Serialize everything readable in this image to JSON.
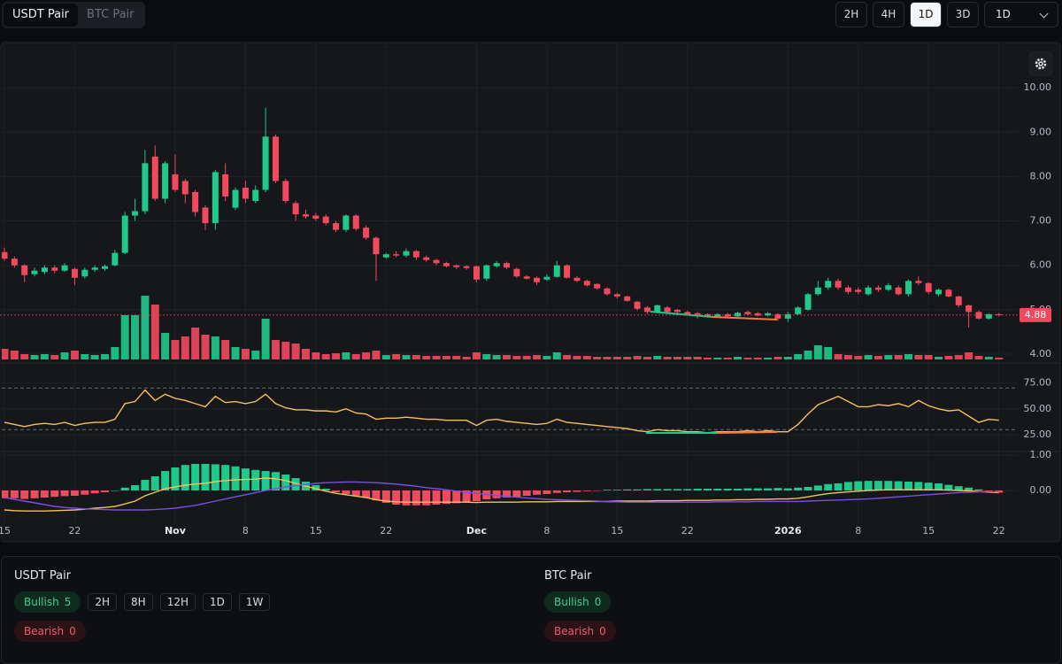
{
  "pair_tabs": [
    {
      "label": "USDT Pair",
      "active": true
    },
    {
      "label": "BTC Pair",
      "active": false
    }
  ],
  "timeframes": [
    {
      "label": "2H",
      "active": false
    },
    {
      "label": "4H",
      "active": false
    },
    {
      "label": "1D",
      "active": true
    },
    {
      "label": "3D",
      "active": false
    }
  ],
  "interval_select": "1D",
  "chart_data": {
    "type": "candlestick",
    "categories": [
      "15",
      null,
      null,
      null,
      null,
      null,
      null,
      "22",
      null,
      null,
      null,
      null,
      null,
      null,
      null,
      null,
      null,
      "Nov",
      null,
      null,
      null,
      null,
      null,
      null,
      "8",
      null,
      null,
      null,
      null,
      null,
      null,
      "15",
      null,
      null,
      null,
      null,
      null,
      null,
      "22",
      null,
      null,
      null,
      null,
      null,
      null,
      null,
      null,
      "Dec",
      null,
      null,
      null,
      null,
      null,
      null,
      "8",
      null,
      null,
      null,
      null,
      null,
      null,
      "15",
      null,
      null,
      null,
      null,
      null,
      null,
      "22",
      null,
      null,
      null,
      null,
      null,
      null,
      null,
      null,
      null,
      "2026",
      null,
      null,
      null,
      null,
      null,
      null,
      "8",
      null,
      null,
      null,
      null,
      null,
      null,
      "15",
      null,
      null,
      null,
      null,
      null,
      null,
      "22"
    ],
    "open": [
      6.3,
      6.15,
      6.0,
      5.8,
      5.85,
      5.95,
      5.88,
      5.92,
      5.75,
      5.9,
      5.92,
      6.0,
      6.28,
      7.12,
      7.22,
      8.45,
      7.5,
      8.05,
      7.9,
      7.65,
      7.3,
      6.95,
      8.05,
      7.3,
      7.75,
      7.45,
      7.7,
      8.9,
      7.9,
      7.4,
      7.15,
      7.12,
      7.1,
      6.95,
      6.8,
      7.12,
      6.85,
      6.62,
      6.18,
      6.25,
      6.22,
      6.32,
      6.18,
      6.12,
      6.05,
      6.0,
      5.98,
      5.98,
      5.7,
      5.98,
      6.05,
      5.92,
      5.75,
      5.72,
      5.68,
      5.74,
      6.0,
      5.72,
      5.65,
      5.58,
      5.48,
      5.35,
      5.3,
      5.18,
      5.05,
      4.95,
      5.05,
      5.0,
      4.95,
      4.92,
      4.9,
      4.85,
      4.9,
      4.85,
      4.95,
      4.92,
      4.87,
      4.9,
      4.8,
      4.9,
      5.0,
      5.35,
      5.5,
      5.65,
      5.5,
      5.45,
      5.35,
      5.5,
      5.45,
      5.5,
      5.35,
      5.65,
      5.6,
      5.35,
      5.45,
      5.3,
      5.1,
      4.95,
      4.8,
      4.9
    ],
    "high": [
      6.4,
      6.2,
      6.02,
      5.95,
      6.0,
      6.0,
      6.05,
      5.95,
      5.95,
      6.0,
      6.02,
      6.35,
      7.2,
      7.5,
      8.6,
      8.7,
      8.35,
      8.5,
      7.95,
      7.7,
      7.35,
      8.15,
      8.3,
      7.75,
      7.9,
      7.8,
      9.55,
      8.95,
      7.95,
      7.45,
      7.25,
      7.18,
      7.15,
      7.0,
      7.15,
      7.15,
      6.9,
      6.65,
      6.28,
      6.32,
      6.38,
      6.35,
      6.22,
      6.15,
      6.08,
      6.02,
      6.0,
      6.0,
      6.02,
      6.1,
      6.08,
      5.95,
      5.78,
      5.75,
      5.8,
      6.1,
      6.02,
      5.75,
      5.68,
      5.6,
      5.5,
      5.38,
      5.32,
      5.2,
      5.08,
      5.12,
      5.08,
      5.02,
      4.98,
      4.95,
      4.92,
      4.92,
      4.93,
      4.96,
      4.98,
      4.95,
      4.95,
      4.92,
      4.95,
      5.08,
      5.38,
      5.65,
      5.72,
      5.7,
      5.55,
      5.5,
      5.55,
      5.55,
      5.6,
      5.55,
      5.68,
      5.75,
      5.62,
      5.48,
      5.48,
      5.32,
      5.12,
      4.98,
      4.92,
      4.92
    ],
    "low": [
      6.1,
      5.95,
      5.62,
      5.75,
      5.8,
      5.82,
      5.85,
      5.55,
      5.7,
      5.85,
      5.88,
      5.98,
      6.25,
      7.0,
      7.15,
      7.45,
      7.4,
      7.65,
      7.4,
      7.1,
      6.8,
      6.8,
      7.45,
      7.25,
      7.4,
      7.4,
      7.65,
      7.85,
      7.4,
      7.0,
      7.05,
      7.0,
      6.9,
      6.75,
      6.75,
      6.78,
      6.58,
      5.65,
      6.15,
      6.18,
      6.18,
      6.12,
      6.08,
      6.0,
      5.95,
      5.92,
      5.9,
      5.62,
      5.65,
      5.95,
      5.92,
      5.72,
      5.68,
      5.55,
      5.65,
      5.72,
      5.7,
      5.62,
      5.52,
      5.45,
      5.32,
      5.25,
      5.18,
      4.98,
      4.9,
      4.92,
      4.9,
      4.9,
      4.88,
      4.8,
      4.82,
      4.82,
      4.82,
      4.83,
      4.88,
      4.85,
      4.85,
      4.75,
      4.72,
      4.88,
      4.98,
      5.32,
      5.45,
      5.45,
      5.35,
      5.35,
      5.32,
      5.4,
      5.42,
      5.32,
      5.3,
      5.55,
      5.35,
      5.3,
      5.28,
      5.05,
      4.6,
      4.78,
      4.78,
      4.85
    ],
    "close": [
      6.15,
      6.0,
      5.78,
      5.88,
      5.95,
      5.88,
      6.0,
      5.72,
      5.9,
      5.95,
      5.98,
      6.28,
      7.12,
      7.22,
      8.3,
      7.5,
      8.3,
      7.7,
      7.6,
      7.2,
      6.95,
      8.1,
      7.55,
      7.7,
      7.5,
      7.7,
      8.9,
      7.9,
      7.45,
      7.15,
      7.1,
      7.05,
      6.95,
      6.8,
      7.12,
      6.82,
      6.62,
      6.25,
      6.25,
      6.22,
      6.32,
      6.18,
      6.12,
      6.05,
      5.98,
      5.96,
      5.94,
      5.68,
      6.0,
      6.05,
      5.95,
      5.75,
      5.7,
      5.62,
      5.74,
      6.0,
      5.72,
      5.65,
      5.55,
      5.48,
      5.35,
      5.3,
      5.2,
      5.02,
      4.95,
      5.1,
      4.95,
      4.95,
      4.9,
      4.88,
      4.85,
      4.9,
      4.85,
      4.93,
      4.9,
      4.87,
      4.92,
      4.8,
      4.9,
      5.05,
      5.35,
      5.5,
      5.65,
      5.5,
      5.4,
      5.4,
      5.5,
      5.45,
      5.55,
      5.35,
      5.65,
      5.6,
      5.4,
      5.45,
      5.3,
      5.1,
      4.95,
      4.8,
      4.9,
      4.88
    ],
    "volume": [
      12,
      10,
      6,
      5,
      6,
      5,
      8,
      10,
      6,
      5,
      6,
      14,
      50,
      50,
      72,
      62,
      30,
      22,
      26,
      36,
      28,
      26,
      22,
      14,
      12,
      10,
      46,
      22,
      20,
      18,
      12,
      8,
      6,
      7,
      8,
      6,
      8,
      10,
      5,
      6,
      5,
      5,
      4,
      4,
      4,
      4,
      3,
      8,
      6,
      5,
      5,
      4,
      4,
      5,
      4,
      8,
      5,
      4,
      4,
      3,
      3,
      3,
      3,
      4,
      3,
      4,
      3,
      3,
      3,
      3,
      2,
      2,
      2,
      3,
      2,
      2,
      2,
      3,
      3,
      6,
      10,
      16,
      14,
      6,
      5,
      4,
      5,
      4,
      5,
      5,
      6,
      5,
      5,
      3,
      4,
      5,
      8,
      4,
      3,
      2
    ],
    "up_color": "#1fc98b",
    "down_color": "#f2495e",
    "ylim": [
      3.84,
      10.98
    ],
    "yticks": [
      {
        "value": 4,
        "label": "4.00"
      },
      {
        "value": 5,
        "label": "5.00"
      },
      {
        "value": 6,
        "label": "6.00"
      },
      {
        "value": 7,
        "label": "7.00"
      },
      {
        "value": 8,
        "label": "8.00"
      },
      {
        "value": 9,
        "label": "9.00"
      },
      {
        "value": 10,
        "label": "10.00"
      }
    ],
    "grid": true,
    "last_price": {
      "value": 4.88,
      "label": "4.88"
    },
    "rsi": {
      "values": [
        37,
        35,
        33,
        35,
        36,
        35,
        37,
        34,
        36,
        37,
        37,
        40,
        55,
        57,
        68,
        58,
        64,
        60,
        58,
        55,
        52,
        62,
        56,
        57,
        55,
        57,
        64,
        55,
        51,
        49,
        49,
        48,
        48,
        47,
        50,
        46,
        45,
        40,
        41,
        41,
        42,
        41,
        40,
        40,
        39,
        39,
        39,
        34,
        39,
        40,
        38,
        37,
        36,
        35,
        36,
        40,
        37,
        36,
        35,
        34,
        33,
        32,
        31,
        29,
        28,
        30,
        29,
        29,
        28,
        28,
        27,
        28,
        28,
        28,
        29,
        28,
        29,
        28,
        28,
        35,
        45,
        54,
        58,
        62,
        57,
        52,
        52,
        54,
        53,
        55,
        52,
        58,
        53,
        50,
        48,
        49,
        43,
        37,
        40,
        39
      ],
      "color": "#f5c15a",
      "ylim": [
        9,
        94
      ],
      "bands": [
        30,
        70
      ],
      "yticks": [
        {
          "value": 25,
          "label": "25.00"
        },
        {
          "value": 50,
          "label": "50.00"
        },
        {
          "value": 75,
          "label": "75.00"
        }
      ]
    },
    "macd": {
      "histogram": [
        -0.22,
        -0.22,
        -0.24,
        -0.22,
        -0.2,
        -0.18,
        -0.16,
        -0.15,
        -0.12,
        -0.08,
        -0.05,
        0.0,
        0.08,
        0.15,
        0.3,
        0.4,
        0.55,
        0.65,
        0.72,
        0.75,
        0.75,
        0.74,
        0.72,
        0.68,
        0.62,
        0.58,
        0.55,
        0.52,
        0.45,
        0.35,
        0.25,
        0.15,
        0.05,
        -0.05,
        -0.1,
        -0.15,
        -0.2,
        -0.28,
        -0.35,
        -0.4,
        -0.42,
        -0.42,
        -0.42,
        -0.4,
        -0.38,
        -0.36,
        -0.34,
        -0.3,
        -0.25,
        -0.22,
        -0.2,
        -0.18,
        -0.15,
        -0.12,
        -0.1,
        -0.07,
        -0.05,
        -0.04,
        -0.02,
        -0.01,
        0.02,
        0.02,
        0.03,
        0.03,
        0.04,
        0.04,
        0.04,
        0.04,
        0.04,
        0.05,
        0.05,
        0.05,
        0.05,
        0.05,
        0.06,
        0.06,
        0.06,
        0.07,
        0.06,
        0.08,
        0.1,
        0.14,
        0.18,
        0.2,
        0.24,
        0.26,
        0.27,
        0.27,
        0.27,
        0.26,
        0.25,
        0.24,
        0.22,
        0.2,
        0.16,
        0.12,
        0.08,
        0.03,
        -0.03,
        -0.06
      ],
      "series": [
        {
          "color": "#f5c15a",
          "values": [
            -0.55,
            -0.57,
            -0.58,
            -0.58,
            -0.58,
            -0.57,
            -0.56,
            -0.55,
            -0.53,
            -0.5,
            -0.48,
            -0.45,
            -0.38,
            -0.3,
            -0.15,
            -0.05,
            0.05,
            0.1,
            0.15,
            0.18,
            0.2,
            0.25,
            0.28,
            0.3,
            0.31,
            0.32,
            0.35,
            0.33,
            0.28,
            0.2,
            0.12,
            0.05,
            -0.02,
            -0.08,
            -0.12,
            -0.16,
            -0.2,
            -0.26,
            -0.3,
            -0.32,
            -0.33,
            -0.33,
            -0.33,
            -0.33,
            -0.33,
            -0.33,
            -0.33,
            -0.34,
            -0.33,
            -0.33,
            -0.33,
            -0.33,
            -0.32,
            -0.32,
            -0.32,
            -0.31,
            -0.31,
            -0.31,
            -0.31,
            -0.31,
            -0.31,
            -0.3,
            -0.3,
            -0.3,
            -0.3,
            -0.29,
            -0.29,
            -0.29,
            -0.28,
            -0.28,
            -0.28,
            -0.27,
            -0.27,
            -0.26,
            -0.26,
            -0.25,
            -0.25,
            -0.24,
            -0.24,
            -0.22,
            -0.18,
            -0.13,
            -0.09,
            -0.06,
            -0.04,
            -0.02,
            0.0,
            0.01,
            0.02,
            0.02,
            0.02,
            0.02,
            0.02,
            0.02,
            0.01,
            0.0,
            -0.01,
            -0.03,
            -0.05,
            -0.06
          ]
        },
        {
          "color": "#7b4fe0",
          "values": [
            -0.2,
            -0.25,
            -0.3,
            -0.35,
            -0.4,
            -0.45,
            -0.48,
            -0.5,
            -0.52,
            -0.53,
            -0.54,
            -0.55,
            -0.55,
            -0.55,
            -0.55,
            -0.54,
            -0.52,
            -0.5,
            -0.46,
            -0.42,
            -0.36,
            -0.3,
            -0.24,
            -0.18,
            -0.12,
            -0.06,
            0.0,
            0.05,
            0.1,
            0.14,
            0.17,
            0.2,
            0.22,
            0.23,
            0.24,
            0.24,
            0.23,
            0.22,
            0.2,
            0.18,
            0.15,
            0.12,
            0.08,
            0.05,
            0.02,
            -0.02,
            -0.05,
            -0.08,
            -0.11,
            -0.14,
            -0.17,
            -0.19,
            -0.21,
            -0.23,
            -0.25,
            -0.26,
            -0.27,
            -0.28,
            -0.29,
            -0.3,
            -0.32,
            -0.32,
            -0.33,
            -0.33,
            -0.33,
            -0.33,
            -0.33,
            -0.33,
            -0.33,
            -0.33,
            -0.33,
            -0.32,
            -0.32,
            -0.32,
            -0.32,
            -0.31,
            -0.31,
            -0.31,
            -0.31,
            -0.31,
            -0.3,
            -0.29,
            -0.28,
            -0.27,
            -0.26,
            -0.25,
            -0.24,
            -0.22,
            -0.2,
            -0.18,
            -0.16,
            -0.14,
            -0.12,
            -0.1,
            -0.08,
            -0.06,
            -0.05,
            -0.04,
            -0.04,
            -0.04
          ]
        }
      ],
      "ylim": [
        -0.95,
        1.1
      ],
      "yticks": [
        {
          "value": 0,
          "label": "0.00"
        },
        {
          "value": 1,
          "label": "1.00"
        }
      ]
    }
  },
  "summary": [
    {
      "title": "USDT Pair",
      "bullish": {
        "label": "Bullish",
        "value": 5
      },
      "bearish": {
        "label": "Bearish",
        "value": 0
      },
      "timeframes": [
        "2H",
        "8H",
        "12H",
        "1D",
        "1W"
      ]
    },
    {
      "title": "BTC Pair",
      "bullish": {
        "label": "Bullish",
        "value": 0
      },
      "bearish": {
        "label": "Bearish",
        "value": 0
      }
    }
  ]
}
